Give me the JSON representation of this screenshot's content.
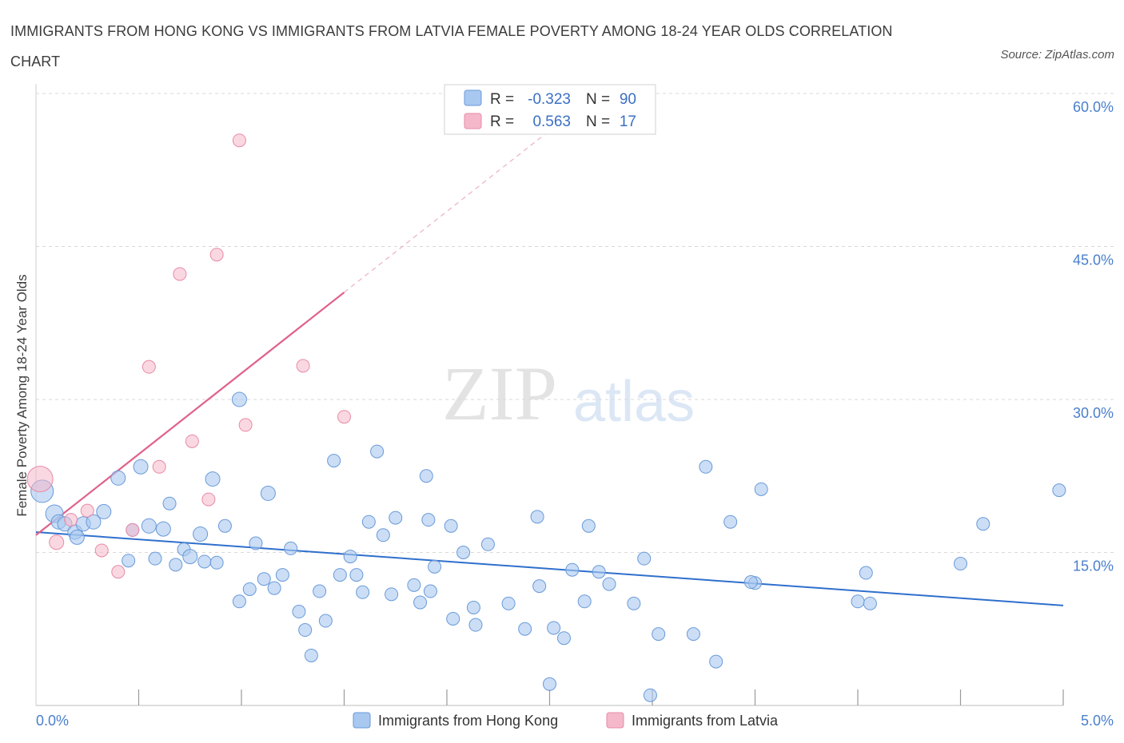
{
  "title": "IMMIGRANTS FROM HONG KONG VS IMMIGRANTS FROM LATVIA FEMALE POVERTY AMONG 18-24 YEAR OLDS CORRELATION CHART",
  "source": "Source: ZipAtlas.com",
  "watermark": {
    "zip": "ZIP",
    "atlas": "atlas"
  },
  "legend": {
    "r_label": "R =",
    "n_label": "N =",
    "hk": {
      "r": "-0.323",
      "n": "90"
    },
    "lv": {
      "r": "0.563",
      "n": "17"
    }
  },
  "colors": {
    "hk_fill": "#a8c8f0",
    "hk_stroke": "#6a9ad8",
    "hk_line": "#2f6fcc",
    "lv_fill": "#f5b8cb",
    "lv_stroke": "#e88aa8",
    "lv_line": "#e0628a",
    "grid": "#d9d9d9",
    "tick_text": "#4a7fcc"
  },
  "chart_data": {
    "type": "scatter",
    "ylabel": "Female Poverty Among 18-24 Year Olds",
    "xlim": [
      0,
      5
    ],
    "ylim": [
      0,
      60
    ],
    "y_ticks": [
      {
        "v": 15,
        "label": "15.0%"
      },
      {
        "v": 30,
        "label": "30.0%"
      },
      {
        "v": 45,
        "label": "45.0%"
      },
      {
        "v": 60,
        "label": "60.0%"
      }
    ],
    "x_tick_labels": [
      {
        "v": 0,
        "label": "0.0%"
      },
      {
        "v": 5,
        "label": "5.0%"
      }
    ],
    "series": [
      {
        "name": "Immigrants from Hong Kong",
        "trend": {
          "x0": 0,
          "y0": 17.0,
          "x1": 5,
          "y1": 9.8
        },
        "points": [
          [
            0.03,
            21.0,
            14
          ],
          [
            0.09,
            18.8,
            11
          ],
          [
            0.11,
            18.0,
            9
          ],
          [
            0.14,
            17.8,
            9
          ],
          [
            0.19,
            17.0,
            9
          ],
          [
            0.2,
            16.5,
            9
          ],
          [
            0.23,
            17.8,
            9
          ],
          [
            0.28,
            18.0,
            9
          ],
          [
            0.33,
            19.0,
            9
          ],
          [
            0.4,
            22.3,
            9
          ],
          [
            0.45,
            14.2,
            8
          ],
          [
            0.47,
            17.2,
            8
          ],
          [
            0.51,
            23.4,
            9
          ],
          [
            0.55,
            17.6,
            9
          ],
          [
            0.58,
            14.4,
            8
          ],
          [
            0.62,
            17.3,
            9
          ],
          [
            0.65,
            19.8,
            8
          ],
          [
            0.68,
            13.8,
            8
          ],
          [
            0.72,
            15.3,
            8
          ],
          [
            0.75,
            14.6,
            9
          ],
          [
            0.8,
            16.8,
            9
          ],
          [
            0.82,
            14.1,
            8
          ],
          [
            0.86,
            22.2,
            9
          ],
          [
            0.88,
            14.0,
            8
          ],
          [
            0.92,
            17.6,
            8
          ],
          [
            0.99,
            30.0,
            9
          ],
          [
            0.99,
            10.2,
            8
          ],
          [
            1.04,
            11.4,
            8
          ],
          [
            1.07,
            15.9,
            8
          ],
          [
            1.11,
            12.4,
            8
          ],
          [
            1.13,
            20.8,
            9
          ],
          [
            1.16,
            11.5,
            8
          ],
          [
            1.2,
            12.8,
            8
          ],
          [
            1.24,
            15.4,
            8
          ],
          [
            1.28,
            9.2,
            8
          ],
          [
            1.31,
            7.4,
            8
          ],
          [
            1.34,
            4.9,
            8
          ],
          [
            1.38,
            11.2,
            8
          ],
          [
            1.41,
            8.3,
            8
          ],
          [
            1.45,
            24.0,
            8
          ],
          [
            1.48,
            12.8,
            8
          ],
          [
            1.53,
            14.6,
            8
          ],
          [
            1.56,
            12.8,
            8
          ],
          [
            1.59,
            11.1,
            8
          ],
          [
            1.62,
            18.0,
            8
          ],
          [
            1.66,
            24.9,
            8
          ],
          [
            1.69,
            16.7,
            8
          ],
          [
            1.73,
            10.9,
            8
          ],
          [
            1.75,
            18.4,
            8
          ],
          [
            1.84,
            11.8,
            8
          ],
          [
            1.87,
            10.1,
            8
          ],
          [
            1.9,
            22.5,
            8
          ],
          [
            1.91,
            18.2,
            8
          ],
          [
            1.94,
            13.6,
            8
          ],
          [
            2.02,
            17.6,
            8
          ],
          [
            2.03,
            8.5,
            8
          ],
          [
            2.08,
            15.0,
            8
          ],
          [
            2.13,
            9.6,
            8
          ],
          [
            2.14,
            7.9,
            8
          ],
          [
            2.2,
            15.8,
            8
          ],
          [
            2.3,
            10.0,
            8
          ],
          [
            2.38,
            7.5,
            8
          ],
          [
            2.44,
            18.5,
            8
          ],
          [
            2.45,
            11.7,
            8
          ],
          [
            2.5,
            2.1,
            8
          ],
          [
            2.52,
            7.6,
            8
          ],
          [
            2.57,
            6.6,
            8
          ],
          [
            2.61,
            13.3,
            8
          ],
          [
            2.67,
            10.2,
            8
          ],
          [
            2.69,
            17.6,
            8
          ],
          [
            2.74,
            13.1,
            8
          ],
          [
            2.79,
            11.9,
            8
          ],
          [
            2.91,
            10.0,
            8
          ],
          [
            2.96,
            14.4,
            8
          ],
          [
            3.03,
            7.0,
            8
          ],
          [
            2.99,
            1.0,
            8
          ],
          [
            3.2,
            7.0,
            8
          ],
          [
            3.26,
            23.4,
            8
          ],
          [
            3.31,
            4.3,
            8
          ],
          [
            3.38,
            18.0,
            8
          ],
          [
            3.5,
            12.0,
            8
          ],
          [
            3.53,
            21.2,
            8
          ],
          [
            4.0,
            10.2,
            8
          ],
          [
            4.04,
            13.0,
            8
          ],
          [
            4.06,
            10.0,
            8
          ],
          [
            4.5,
            13.9,
            8
          ],
          [
            4.61,
            17.8,
            8
          ],
          [
            4.98,
            21.1,
            8
          ],
          [
            3.48,
            12.1,
            8
          ],
          [
            1.92,
            11.2,
            8
          ]
        ]
      },
      {
        "name": "Immigrants from Latvia",
        "trend": {
          "x0": 0,
          "y0": 16.7,
          "x1": 1.5,
          "y1": 40.5,
          "x_dash_end": 2.6
        },
        "points": [
          [
            0.02,
            22.2,
            16
          ],
          [
            0.1,
            16.0,
            9
          ],
          [
            0.17,
            18.2,
            8
          ],
          [
            0.25,
            19.1,
            8
          ],
          [
            0.32,
            15.2,
            8
          ],
          [
            0.4,
            13.1,
            8
          ],
          [
            0.47,
            17.2,
            8
          ],
          [
            0.55,
            33.2,
            8
          ],
          [
            0.6,
            23.4,
            8
          ],
          [
            0.7,
            42.3,
            8
          ],
          [
            0.76,
            25.9,
            8
          ],
          [
            0.84,
            20.2,
            8
          ],
          [
            0.88,
            44.2,
            8
          ],
          [
            0.99,
            55.4,
            8
          ],
          [
            1.02,
            27.5,
            8
          ],
          [
            1.3,
            33.3,
            8
          ],
          [
            1.5,
            28.3,
            8
          ]
        ]
      }
    ]
  }
}
